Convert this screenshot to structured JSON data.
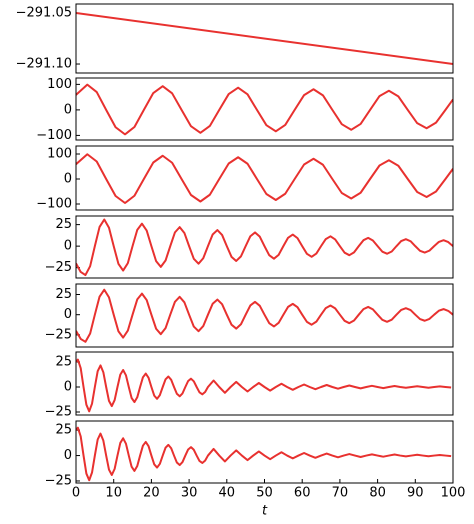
{
  "chart_data": [
    {
      "type": "line",
      "color": "#e8312f",
      "xlim": [
        0,
        100
      ],
      "ylim": [
        -291.1088,
        -291.0412
      ],
      "yticks": [
        {
          "value": -291.05,
          "label": "−291.05"
        },
        {
          "value": -291.1,
          "label": "−291.10"
        }
      ],
      "x": [
        0,
        100
      ],
      "values": [
        -291.05,
        -291.1
      ]
    },
    {
      "type": "line",
      "color": "#e8312f",
      "xlim": [
        0,
        100
      ],
      "ylim": [
        -118,
        125
      ],
      "yticks": [
        {
          "value": -100,
          "label": "−100"
        },
        0,
        100
      ],
      "x": [
        0,
        3,
        5.5,
        8,
        10.5,
        13,
        15.5,
        18,
        20.5,
        23,
        25.5,
        28,
        30.5,
        33,
        35.5,
        38,
        40.5,
        43,
        45.5,
        48,
        50.5,
        53,
        55.5,
        58,
        60.5,
        63,
        65.5,
        68,
        70.5,
        73,
        75.5,
        78,
        80.5,
        83,
        85.5,
        88,
        90.5,
        93,
        95.5,
        98,
        100
      ],
      "values": [
        59,
        99,
        70,
        0,
        -68,
        -96,
        -67,
        0,
        66,
        93,
        65,
        0,
        -64,
        -90,
        -63,
        0,
        62,
        87,
        61,
        0,
        -60,
        -84,
        -59,
        0,
        58,
        81,
        57,
        0,
        -56,
        -78,
        -55,
        0,
        54,
        75,
        53,
        0,
        -52,
        -72,
        -50,
        0,
        41
      ]
    },
    {
      "type": "line",
      "color": "#e8312f",
      "xlim": [
        0,
        100
      ],
      "ylim": [
        -124,
        132
      ],
      "yticks": [
        {
          "value": -100,
          "label": "−100"
        },
        0,
        100
      ],
      "x": [
        0,
        3,
        5.5,
        8,
        10.5,
        13,
        15.5,
        18,
        20.5,
        23,
        25.5,
        28,
        30.5,
        33,
        35.5,
        38,
        40.5,
        43,
        45.5,
        48,
        50.5,
        53,
        55.5,
        58,
        60.5,
        63,
        65.5,
        68,
        70.5,
        73,
        75.5,
        78,
        80.5,
        83,
        85.5,
        88,
        90.5,
        93,
        95.5,
        98,
        100
      ],
      "values": [
        59,
        99,
        70,
        0,
        -68,
        -96,
        -67,
        0,
        66,
        93,
        65,
        0,
        -64,
        -90,
        -63,
        0,
        62,
        87,
        61,
        0,
        -60,
        -84,
        -59,
        0,
        58,
        81,
        57,
        0,
        -56,
        -78,
        -55,
        0,
        54,
        75,
        53,
        0,
        -52,
        -72,
        -50,
        0,
        41
      ]
    },
    {
      "type": "line",
      "color": "#e8312f",
      "xlim": [
        0,
        100
      ],
      "ylim": [
        -37,
        35
      ],
      "yticks": [
        {
          "value": -25,
          "label": "−25"
        },
        0,
        25
      ],
      "x": [
        0,
        1.25,
        2.5,
        3.75,
        5,
        6.25,
        7.5,
        8.75,
        10,
        11.25,
        12.5,
        13.75,
        15,
        16.25,
        17.5,
        18.75,
        20,
        21.25,
        22.5,
        23.75,
        25,
        26.25,
        27.5,
        28.75,
        30,
        31.25,
        32.5,
        33.75,
        35,
        36.25,
        37.5,
        38.75,
        40,
        41.25,
        42.5,
        43.75,
        45,
        46.25,
        47.5,
        48.75,
        50,
        51.25,
        52.5,
        53.75,
        55,
        56.25,
        57.5,
        58.75,
        60,
        61.25,
        62.5,
        63.75,
        65,
        66.25,
        67.5,
        68.75,
        70,
        71.25,
        72.5,
        73.75,
        75,
        76.25,
        77.5,
        78.75,
        80,
        81.25,
        82.5,
        83.75,
        85,
        86.25,
        87.5,
        88.75,
        90,
        91.25,
        92.5,
        93.75,
        95,
        96.25,
        97.5,
        98.75,
        100
      ],
      "values": [
        -20,
        -30,
        -33.6,
        -23.3,
        0,
        22.3,
        30.9,
        21.4,
        0,
        -20.5,
        -28.4,
        -19.7,
        0,
        18.9,
        26.1,
        18.1,
        0,
        -17.4,
        -24.1,
        -16.7,
        0,
        16.0,
        22.1,
        15.3,
        0,
        -14.7,
        -20.4,
        -14.1,
        0,
        13.5,
        18.7,
        13.0,
        0,
        -12.4,
        -17.2,
        -11.9,
        0,
        11.5,
        15.9,
        11.0,
        0,
        -10.5,
        -14.6,
        -10.1,
        0,
        9.7,
        13.4,
        9.3,
        0,
        -8.9,
        -12.4,
        -8.6,
        0,
        8.2,
        11.4,
        7.8,
        0,
        -7.6,
        -10.5,
        -7.2,
        0,
        6.9,
        9.6,
        6.6,
        0,
        -6.4,
        -8.8,
        -6.2,
        0,
        5.9,
        8.1,
        5.7,
        0,
        -5.4,
        -7.5,
        -5.2,
        0,
        4.9,
        6.9,
        4.7,
        0
      ]
    },
    {
      "type": "line",
      "color": "#e8312f",
      "xlim": [
        0,
        100
      ],
      "ylim": [
        -40,
        38
      ],
      "yticks": [
        {
          "value": -25,
          "label": "−25"
        },
        0,
        25
      ],
      "x": [
        0,
        1.25,
        2.5,
        3.75,
        5,
        6.25,
        7.5,
        8.75,
        10,
        11.25,
        12.5,
        13.75,
        15,
        16.25,
        17.5,
        18.75,
        20,
        21.25,
        22.5,
        23.75,
        25,
        26.25,
        27.5,
        28.75,
        30,
        31.25,
        32.5,
        33.75,
        35,
        36.25,
        37.5,
        38.75,
        40,
        41.25,
        42.5,
        43.75,
        45,
        46.25,
        47.5,
        48.75,
        50,
        51.25,
        52.5,
        53.75,
        55,
        56.25,
        57.5,
        58.75,
        60,
        61.25,
        62.5,
        63.75,
        65,
        66.25,
        67.5,
        68.75,
        70,
        71.25,
        72.5,
        73.75,
        75,
        76.25,
        77.5,
        78.75,
        80,
        81.25,
        82.5,
        83.75,
        85,
        86.25,
        87.5,
        88.75,
        90,
        91.25,
        92.5,
        93.75,
        95,
        96.25,
        97.5,
        98.75,
        100
      ],
      "values": [
        -20,
        -30,
        -33.6,
        -23.3,
        0,
        22.3,
        30.9,
        21.4,
        0,
        -20.5,
        -28.4,
        -19.7,
        0,
        18.9,
        26.1,
        18.1,
        0,
        -17.4,
        -24.1,
        -16.7,
        0,
        16.0,
        22.1,
        15.3,
        0,
        -14.7,
        -20.4,
        -14.1,
        0,
        13.5,
        18.7,
        13.0,
        0,
        -12.4,
        -17.2,
        -11.9,
        0,
        11.5,
        15.9,
        11.0,
        0,
        -10.5,
        -14.6,
        -10.1,
        0,
        9.7,
        13.4,
        9.3,
        0,
        -8.9,
        -12.4,
        -8.6,
        0,
        8.2,
        11.4,
        7.8,
        0,
        -7.6,
        -10.5,
        -7.2,
        0,
        6.9,
        9.6,
        6.6,
        0,
        -6.4,
        -8.8,
        -6.2,
        0,
        5.9,
        8.1,
        5.7,
        0,
        -5.4,
        -7.5,
        -5.2,
        0,
        4.9,
        6.9,
        4.7,
        0
      ]
    },
    {
      "type": "line",
      "color": "#e8312f",
      "xlim": [
        0,
        100
      ],
      "ylim": [
        -28,
        35
      ],
      "yticks": [
        {
          "value": -25,
          "label": "−25"
        },
        0,
        25
      ],
      "x": [
        0,
        0.5,
        1.25,
        2,
        2.75,
        3.5,
        4.25,
        5,
        5.75,
        6.5,
        7.25,
        8,
        8.75,
        9.5,
        10.25,
        11,
        11.75,
        12.5,
        13.25,
        14,
        14.75,
        15.5,
        16.25,
        17,
        17.75,
        18.5,
        19.25,
        20,
        20.75,
        21.5,
        22.25,
        23,
        23.75,
        24.5,
        25.25,
        26,
        26.75,
        27.5,
        28.25,
        29,
        29.75,
        30.5,
        31.25,
        32,
        32.75,
        33.5,
        34.25,
        35,
        36.5,
        38,
        39.5,
        41,
        42.5,
        44,
        45.5,
        47,
        48.5,
        50,
        51.5,
        53,
        54.5,
        56,
        57.5,
        59,
        60.5,
        62,
        63.5,
        65,
        66.5,
        68,
        69.5,
        71,
        72.5,
        74,
        75.5,
        77,
        78.5,
        80,
        81.5,
        83,
        84.5,
        86,
        87.5,
        89,
        90.5,
        92,
        93.5,
        95,
        96.5,
        98,
        99.5
      ],
      "values": [
        25,
        27.4,
        18.8,
        0,
        -17.7,
        -24.3,
        -16.7,
        0,
        15.8,
        21.6,
        14.8,
        0,
        -13.9,
        -19.1,
        -13.1,
        0,
        12.4,
        17.0,
        11.7,
        0,
        -11.0,
        -15.1,
        -10.3,
        0,
        9.7,
        13.4,
        9.2,
        0,
        -8.6,
        -11.8,
        -8.1,
        0,
        7.7,
        10.5,
        7.2,
        0,
        -6.8,
        -9.3,
        -6.4,
        0,
        6.0,
        8.3,
        5.7,
        0,
        -5.3,
        -7.3,
        -5.0,
        0,
        6.5,
        0,
        -5.8,
        0,
        5.1,
        0,
        -4.5,
        0,
        4.0,
        0,
        -3.6,
        0,
        3.2,
        0,
        -2.8,
        0,
        2.5,
        0,
        -2.2,
        0,
        2.0,
        0,
        -1.7,
        0,
        1.5,
        0,
        -1.4,
        0,
        1.2,
        0,
        -1.1,
        0,
        1.0,
        0,
        -0.8,
        0,
        0.8,
        0,
        -0.7,
        0,
        0.6,
        0,
        -0.5
      ]
    },
    {
      "type": "line",
      "color": "#e8312f",
      "xlim": [
        0,
        100
      ],
      "ylim": [
        -27,
        34
      ],
      "yticks": [
        {
          "value": -25,
          "label": "−25"
        },
        0,
        25
      ],
      "xticks": [
        0,
        10,
        20,
        30,
        40,
        50,
        60,
        70,
        80,
        90,
        100
      ],
      "xlabel": "t",
      "x": [
        0,
        0.5,
        1.25,
        2,
        2.75,
        3.5,
        4.25,
        5,
        5.75,
        6.5,
        7.25,
        8,
        8.75,
        9.5,
        10.25,
        11,
        11.75,
        12.5,
        13.25,
        14,
        14.75,
        15.5,
        16.25,
        17,
        17.75,
        18.5,
        19.25,
        20,
        20.75,
        21.5,
        22.25,
        23,
        23.75,
        24.5,
        25.25,
        26,
        26.75,
        27.5,
        28.25,
        29,
        29.75,
        30.5,
        31.25,
        32,
        32.75,
        33.5,
        34.25,
        35,
        36.5,
        38,
        39.5,
        41,
        42.5,
        44,
        45.5,
        47,
        48.5,
        50,
        51.5,
        53,
        54.5,
        56,
        57.5,
        59,
        60.5,
        62,
        63.5,
        65,
        66.5,
        68,
        69.5,
        71,
        72.5,
        74,
        75.5,
        77,
        78.5,
        80,
        81.5,
        83,
        84.5,
        86,
        87.5,
        89,
        90.5,
        92,
        93.5,
        95,
        96.5,
        98,
        99.5
      ],
      "values": [
        25,
        27.4,
        18.8,
        0,
        -17.7,
        -24.3,
        -16.7,
        0,
        15.8,
        21.6,
        14.8,
        0,
        -13.9,
        -19.1,
        -13.1,
        0,
        12.4,
        17.0,
        11.7,
        0,
        -11.0,
        -15.1,
        -10.3,
        0,
        9.7,
        13.4,
        9.2,
        0,
        -8.6,
        -11.8,
        -8.1,
        0,
        7.7,
        10.5,
        7.2,
        0,
        -6.8,
        -9.3,
        -6.4,
        0,
        6.0,
        8.3,
        5.7,
        0,
        -5.3,
        -7.3,
        -5.0,
        0,
        6.5,
        0,
        -5.8,
        0,
        5.1,
        0,
        -4.5,
        0,
        4.0,
        0,
        -3.6,
        0,
        3.2,
        0,
        -2.8,
        0,
        2.5,
        0,
        -2.2,
        0,
        2.0,
        0,
        -1.7,
        0,
        1.5,
        0,
        -1.4,
        0,
        1.2,
        0,
        -1.1,
        0,
        1.0,
        0,
        -0.8,
        0,
        0.8,
        0,
        -0.7,
        0,
        0.6,
        0,
        -0.5
      ]
    }
  ]
}
